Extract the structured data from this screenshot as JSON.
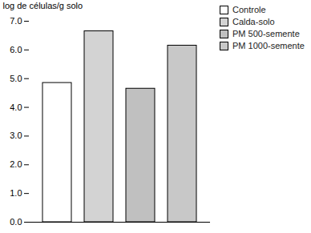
{
  "chart_data": {
    "type": "bar",
    "categories": [
      "Controle",
      "Calda-solo",
      "PM 500-semente",
      "PM 1000-semente"
    ],
    "values": [
      4.85,
      6.65,
      4.65,
      6.15
    ],
    "colors": [
      "#ffffff",
      "#d3d3d3",
      "#c0c0c0",
      "#c8c8c8"
    ],
    "ylabel": "log de células/g solo",
    "ylim": [
      0,
      7
    ],
    "yticks": [
      0,
      1,
      2,
      3,
      4,
      5,
      6,
      7
    ],
    "legend": "upper right",
    "tick_labels": "y"
  }
}
